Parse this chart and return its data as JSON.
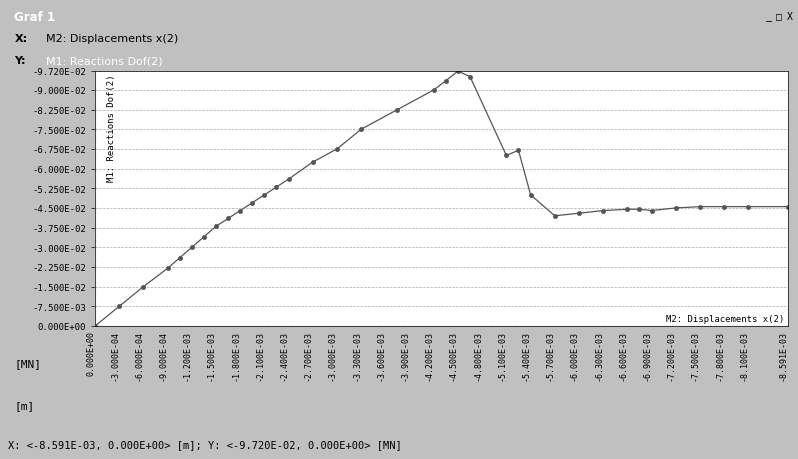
{
  "title": "Graf 1",
  "xlabel": "M2: Displacements x(2)",
  "ylabel": "M1: Reactions Dof(2)",
  "xlabel_axis": "[m]",
  "ylabel_axis": "[MN]",
  "xlim": [
    0.0,
    -0.008591
  ],
  "ylim": [
    0.0,
    -0.0972
  ],
  "x_ticks": [
    0.0,
    -0.0003,
    -0.0006,
    -0.0009,
    -0.0012,
    -0.0015,
    -0.0018,
    -0.0021,
    -0.0024,
    -0.0027,
    -0.003,
    -0.0033,
    -0.0036,
    -0.0039,
    -0.0042,
    -0.0045,
    -0.0048,
    -0.0051,
    -0.0054,
    -0.0057,
    -0.006,
    -0.0063,
    -0.0066,
    -0.0069,
    -0.0072,
    -0.0075,
    -0.0078,
    -0.0081,
    -0.008591
  ],
  "y_ticks": [
    0.0,
    -0.0075,
    -0.015,
    -0.0225,
    -0.03,
    -0.0375,
    -0.045,
    -0.0525,
    -0.06,
    -0.0675,
    -0.075,
    -0.0825,
    -0.09,
    -0.0972
  ],
  "data_x": [
    0.0,
    -0.0003,
    -0.0006,
    -0.0009,
    -0.00105,
    -0.0012,
    -0.00135,
    -0.0015,
    -0.00165,
    -0.0018,
    -0.00195,
    -0.0021,
    -0.00225,
    -0.0024,
    -0.0027,
    -0.003,
    -0.0033,
    -0.00375,
    -0.0042,
    -0.00435,
    -0.0045,
    -0.00465,
    -0.0051,
    -0.00525,
    -0.0054,
    -0.0057,
    -0.006,
    -0.0063,
    -0.0066,
    -0.00675,
    -0.0069,
    -0.0072,
    -0.0075,
    -0.0078,
    -0.0081,
    -0.008591
  ],
  "data_y": [
    0.0,
    -0.0075,
    -0.015,
    -0.022,
    -0.026,
    -0.03,
    -0.034,
    -0.038,
    -0.041,
    -0.044,
    -0.047,
    -0.05,
    -0.053,
    -0.056,
    -0.0625,
    -0.0675,
    -0.075,
    -0.0825,
    -0.09,
    -0.0935,
    -0.0972,
    -0.095,
    -0.065,
    -0.067,
    -0.05,
    -0.042,
    -0.043,
    -0.044,
    -0.0445,
    -0.0445,
    -0.044,
    -0.045,
    -0.0455,
    -0.0455,
    -0.0455,
    -0.0455
  ],
  "line_color": "#555555",
  "marker_color": "#555555",
  "marker_size": 3,
  "grid_color": "#aaaaaa",
  "bg_color": "#ffffff",
  "panel_bg": "#c0c0c0",
  "title_bar_color": "#000080",
  "win_title_bg": "#808080",
  "footer_bg": "#c0c0c0",
  "status_text": "X: <-8.591E-03, 0.000E+00> [m]; Y: <-9.720E-02, 0.000E+00> [MN]"
}
